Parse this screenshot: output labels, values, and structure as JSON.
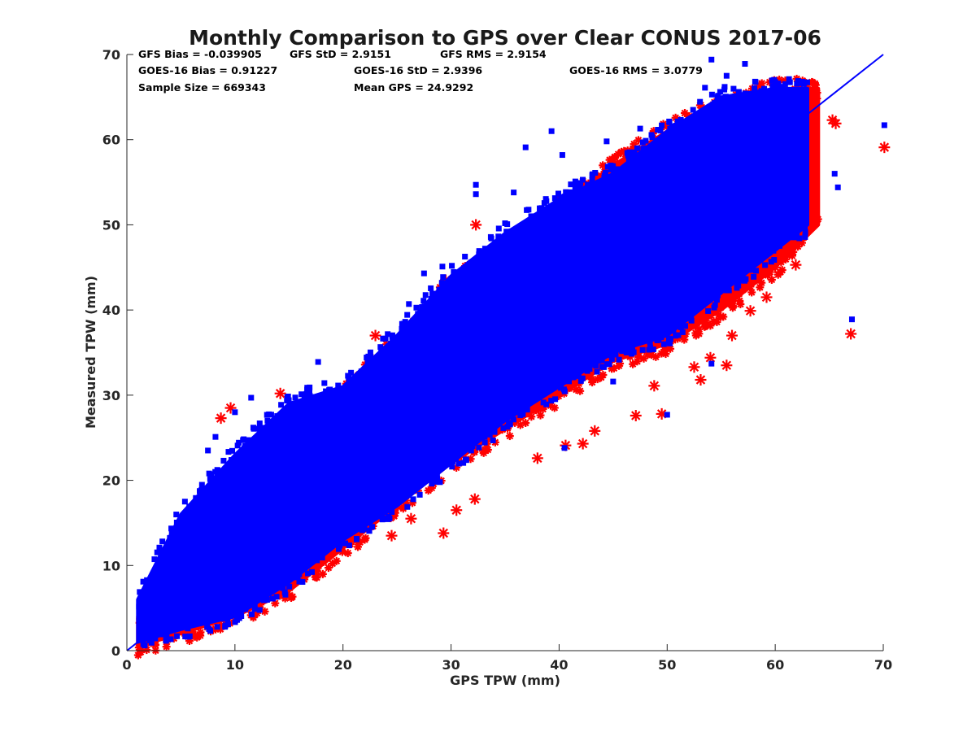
{
  "chart_data": {
    "type": "scatter",
    "title": "Monthly Comparison to GPS over Clear CONUS 2017-06",
    "xlabel": "GPS TPW (mm)",
    "ylabel": "Measured TPW (mm)",
    "xlim": [
      0,
      70
    ],
    "ylim": [
      0,
      70
    ],
    "x_ticks": [
      "0",
      "10",
      "20",
      "30",
      "40",
      "50",
      "60",
      "70"
    ],
    "y_ticks": [
      "0",
      "10",
      "20",
      "30",
      "40",
      "50",
      "60",
      "70"
    ],
    "grid": false,
    "legend": "none",
    "reference_line": {
      "from": [
        0,
        0
      ],
      "to": [
        70,
        70
      ],
      "color": "#0000ff"
    },
    "stats": {
      "gfs_bias": "GFS Bias = -0.039905",
      "gfs_std": "GFS StD = 2.9151",
      "gfs_rms": "GFS RMS = 2.9154",
      "goes_bias": "GOES-16 Bias = 0.91227",
      "goes_std": "GOES-16 StD = 2.9396",
      "goes_rms": "GOES-16 RMS = 3.0779",
      "sample_size": "Sample Size = 669343",
      "mean_gps": "Mean GPS = 24.9292"
    },
    "series": [
      {
        "marker": "asterisk",
        "color": "#ff0000",
        "band": [
          [
            1,
            0.5,
            4
          ],
          [
            5,
            2,
            10
          ],
          [
            10,
            4,
            18
          ],
          [
            15,
            7,
            24
          ],
          [
            20,
            12,
            30
          ],
          [
            25,
            17,
            36
          ],
          [
            30,
            22,
            43
          ],
          [
            35,
            26,
            47
          ],
          [
            40,
            30,
            52
          ],
          [
            45,
            34,
            57
          ],
          [
            50,
            36,
            61
          ],
          [
            55,
            40,
            64
          ],
          [
            60,
            45,
            66
          ],
          [
            64,
            50,
            66
          ]
        ],
        "outliers": [
          [
            8.7,
            27.3
          ],
          [
            9.6,
            28.5
          ],
          [
            14.2,
            30.2
          ],
          [
            21.6,
            32.3
          ],
          [
            23,
            37
          ],
          [
            29.5,
            43.5
          ],
          [
            32.3,
            50
          ],
          [
            29.3,
            13.8
          ],
          [
            32.2,
            17.8
          ],
          [
            30.5,
            16.5
          ],
          [
            26.3,
            15.5
          ],
          [
            24.5,
            13.5
          ],
          [
            38,
            22.6
          ],
          [
            40.6,
            24.1
          ],
          [
            42.2,
            24.3
          ],
          [
            43.3,
            25.8
          ],
          [
            47.1,
            27.6
          ],
          [
            49.5,
            27.8
          ],
          [
            48.8,
            31.1
          ],
          [
            52.5,
            33.3
          ],
          [
            53.1,
            31.8
          ],
          [
            54,
            34.4
          ],
          [
            55.5,
            33.5
          ],
          [
            56,
            37
          ],
          [
            57.7,
            39.9
          ],
          [
            59.2,
            41.5
          ],
          [
            60,
            45
          ],
          [
            61.9,
            45.3
          ],
          [
            61.7,
            48
          ],
          [
            62.2,
            50.5
          ],
          [
            62.6,
            53.5
          ],
          [
            61,
            56
          ],
          [
            63,
            58
          ],
          [
            65.3,
            62.3
          ],
          [
            65.6,
            61.9
          ],
          [
            67,
            37.2
          ],
          [
            70.1,
            59.1
          ]
        ]
      },
      {
        "marker": "square",
        "color": "#0000ff",
        "band": [
          [
            1,
            1,
            6
          ],
          [
            5,
            2.5,
            16
          ],
          [
            10,
            4,
            23
          ],
          [
            15,
            8,
            29
          ],
          [
            20,
            13,
            31
          ],
          [
            25,
            17,
            37
          ],
          [
            30,
            22,
            44
          ],
          [
            35,
            27,
            49
          ],
          [
            40,
            31,
            53
          ],
          [
            45,
            35,
            56
          ],
          [
            50,
            37,
            61
          ],
          [
            55,
            42,
            65
          ],
          [
            60,
            47,
            66
          ],
          [
            63,
            50,
            66
          ]
        ],
        "outliers": [
          [
            7.5,
            23.5
          ],
          [
            8.2,
            25.1
          ],
          [
            10,
            28
          ],
          [
            11.5,
            29.7
          ],
          [
            17.7,
            33.9
          ],
          [
            26.1,
            40.7
          ],
          [
            27.5,
            44.3
          ],
          [
            29.2,
            45.1
          ],
          [
            32.3,
            54.7
          ],
          [
            32.3,
            53.6
          ],
          [
            35.8,
            53.8
          ],
          [
            36.9,
            59.1
          ],
          [
            39.3,
            61
          ],
          [
            40.3,
            58.2
          ],
          [
            44.4,
            59.8
          ],
          [
            47.5,
            61.3
          ],
          [
            52.4,
            63.5
          ],
          [
            53.5,
            66.1
          ],
          [
            54.1,
            69.4
          ],
          [
            55.5,
            67.5
          ],
          [
            57.2,
            68.9
          ],
          [
            65.5,
            56
          ],
          [
            65.8,
            54.4
          ],
          [
            67.1,
            38.9
          ],
          [
            70.1,
            61.7
          ],
          [
            40.5,
            23.8
          ],
          [
            45,
            31.6
          ],
          [
            50,
            27.7
          ],
          [
            54.1,
            33.7
          ]
        ]
      }
    ]
  }
}
